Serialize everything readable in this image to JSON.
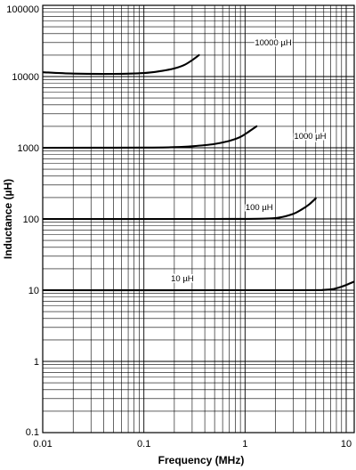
{
  "chart_data": {
    "type": "line",
    "xlabel": "Frequency (MHz)",
    "ylabel": "Inductance (µH)",
    "x_scale": "log",
    "y_scale": "log",
    "xlim": [
      0.01,
      12
    ],
    "ylim": [
      0.1,
      100000
    ],
    "grid": true,
    "x_ticks": [
      {
        "value": 0.01,
        "label": "0.01"
      },
      {
        "value": 0.1,
        "label": "0.1"
      },
      {
        "value": 1,
        "label": "1"
      },
      {
        "value": 10,
        "label": "10"
      }
    ],
    "y_ticks": [
      {
        "value": 100000,
        "label": "100000"
      },
      {
        "value": 10000,
        "label": "10000"
      },
      {
        "value": 1000,
        "label": "1000"
      },
      {
        "value": 100,
        "label": "100"
      },
      {
        "value": 10,
        "label": "10"
      },
      {
        "value": 1,
        "label": "1"
      },
      {
        "value": 0.1,
        "label": "0.1"
      }
    ],
    "series": [
      {
        "name": "10000 µH",
        "points": [
          [
            0.01,
            11500
          ],
          [
            0.02,
            11000
          ],
          [
            0.05,
            10900
          ],
          [
            0.1,
            11200
          ],
          [
            0.15,
            12000
          ],
          [
            0.2,
            13000
          ],
          [
            0.25,
            14500
          ],
          [
            0.3,
            17000
          ],
          [
            0.35,
            20000
          ]
        ]
      },
      {
        "name": "1000 µH",
        "points": [
          [
            0.01,
            1000
          ],
          [
            0.1,
            1005
          ],
          [
            0.2,
            1020
          ],
          [
            0.3,
            1050
          ],
          [
            0.5,
            1130
          ],
          [
            0.7,
            1250
          ],
          [
            0.9,
            1420
          ],
          [
            1.1,
            1700
          ],
          [
            1.3,
            2000
          ]
        ]
      },
      {
        "name": "100 µH",
        "points": [
          [
            0.01,
            100
          ],
          [
            0.5,
            100
          ],
          [
            1.5,
            101
          ],
          [
            2.2,
            105
          ],
          [
            3,
            118
          ],
          [
            3.6,
            135
          ],
          [
            4.3,
            160
          ],
          [
            5,
            195
          ]
        ]
      },
      {
        "name": "10 µH",
        "points": [
          [
            0.01,
            10
          ],
          [
            3,
            10
          ],
          [
            6,
            10.1
          ],
          [
            7.5,
            10.4
          ],
          [
            9,
            11.2
          ],
          [
            10.5,
            12.2
          ],
          [
            12,
            13.2
          ]
        ]
      }
    ]
  }
}
